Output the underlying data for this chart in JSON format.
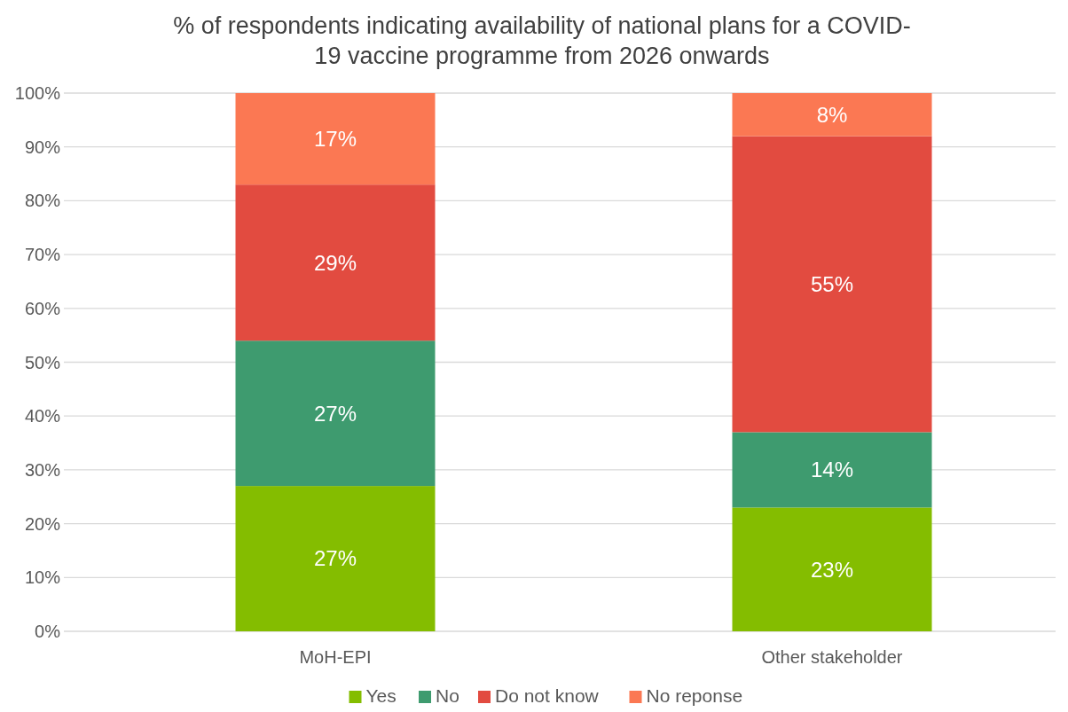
{
  "chart_data": {
    "type": "bar",
    "title": "% of respondents indicating availability of national plans for a COVID-19 vaccine programme from 2026 onwards",
    "categories": [
      "MoH-EPI",
      "Other stakeholder"
    ],
    "stacked": true,
    "ylim": [
      0,
      100
    ],
    "yticks": [
      {
        "value": 0,
        "label": "0%"
      },
      {
        "value": 10,
        "label": "10%"
      },
      {
        "value": 20,
        "label": "20%"
      },
      {
        "value": 30,
        "label": "30%"
      },
      {
        "value": 40,
        "label": "40%"
      },
      {
        "value": 50,
        "label": "50%"
      },
      {
        "value": 60,
        "label": "60%"
      },
      {
        "value": 70,
        "label": "70%"
      },
      {
        "value": 80,
        "label": "80%"
      },
      {
        "value": 90,
        "label": "90%"
      },
      {
        "value": 100,
        "label": "100%"
      }
    ],
    "grid": "y",
    "legend": "bottom",
    "series": [
      {
        "name": "Yes",
        "color": "#84bd00",
        "values": [
          27,
          23
        ],
        "value_labels": [
          "27%",
          "23%"
        ]
      },
      {
        "name": "No",
        "color": "#3e9b6f",
        "values": [
          27,
          14
        ],
        "value_labels": [
          "27%",
          "14%"
        ]
      },
      {
        "name": "Do not know",
        "color": "#e24b40",
        "values": [
          29,
          55
        ],
        "value_labels": [
          "29%",
          "55%"
        ]
      },
      {
        "name": "No reponse",
        "color": "#fb7853",
        "values": [
          17,
          8
        ],
        "value_labels": [
          "17%",
          "8%"
        ]
      }
    ]
  }
}
